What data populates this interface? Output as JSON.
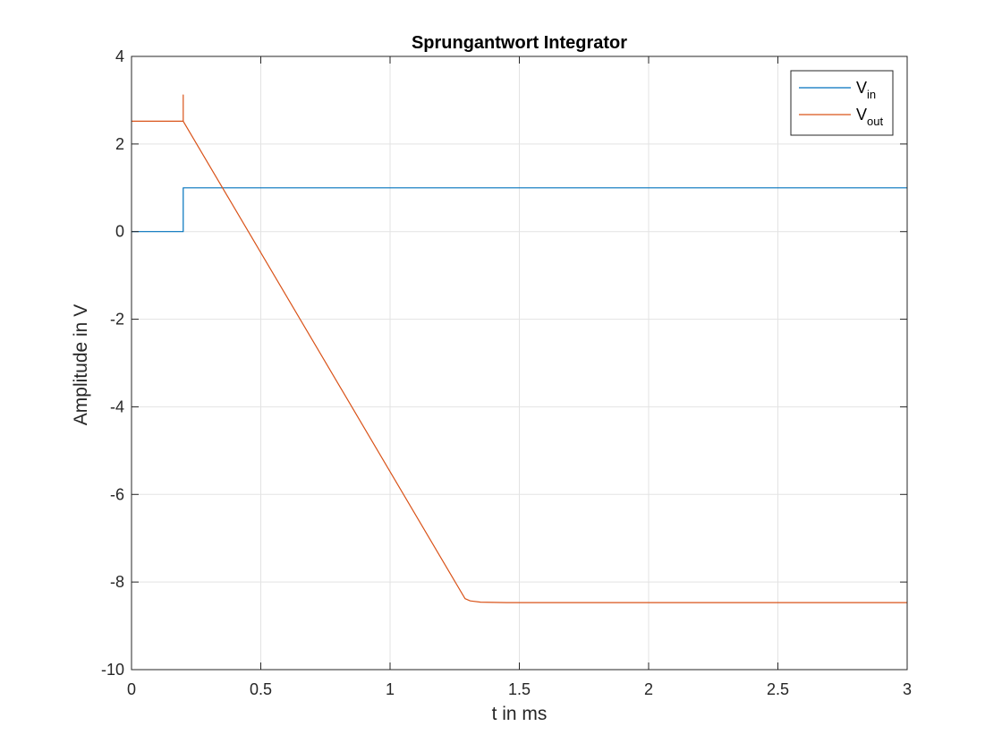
{
  "chart_data": {
    "type": "line",
    "title": "Sprungantwort Integrator",
    "xlabel": "t in ms",
    "ylabel": "Amplitude in V",
    "xlim": [
      0,
      3
    ],
    "ylim": [
      -10,
      4
    ],
    "xticks": [
      0,
      0.5,
      1,
      1.5,
      2,
      2.5,
      3
    ],
    "xtick_labels": [
      "0",
      "0.5",
      "1",
      "1.5",
      "2",
      "2.5",
      "3"
    ],
    "yticks": [
      -10,
      -8,
      -6,
      -4,
      -2,
      0,
      2,
      4
    ],
    "ytick_labels": [
      "-10",
      "-8",
      "-6",
      "-4",
      "-2",
      "0",
      "2",
      "4"
    ],
    "grid": true,
    "legend_position": "top-right",
    "series": [
      {
        "name_main": "V",
        "name_sub": "in",
        "color": "#0072BD",
        "x": [
          0,
          0.2,
          0.2,
          3
        ],
        "y": [
          0,
          0,
          1,
          1
        ]
      },
      {
        "name_main": "V",
        "name_sub": "out",
        "color": "#D95319",
        "x": [
          0,
          0.2,
          0.2,
          0.2,
          0.2,
          1.29,
          1.31,
          1.35,
          1.45,
          3
        ],
        "y": [
          2.52,
          2.52,
          3.12,
          2.6,
          2.52,
          -8.38,
          -8.43,
          -8.46,
          -8.47,
          -8.47
        ]
      }
    ]
  }
}
